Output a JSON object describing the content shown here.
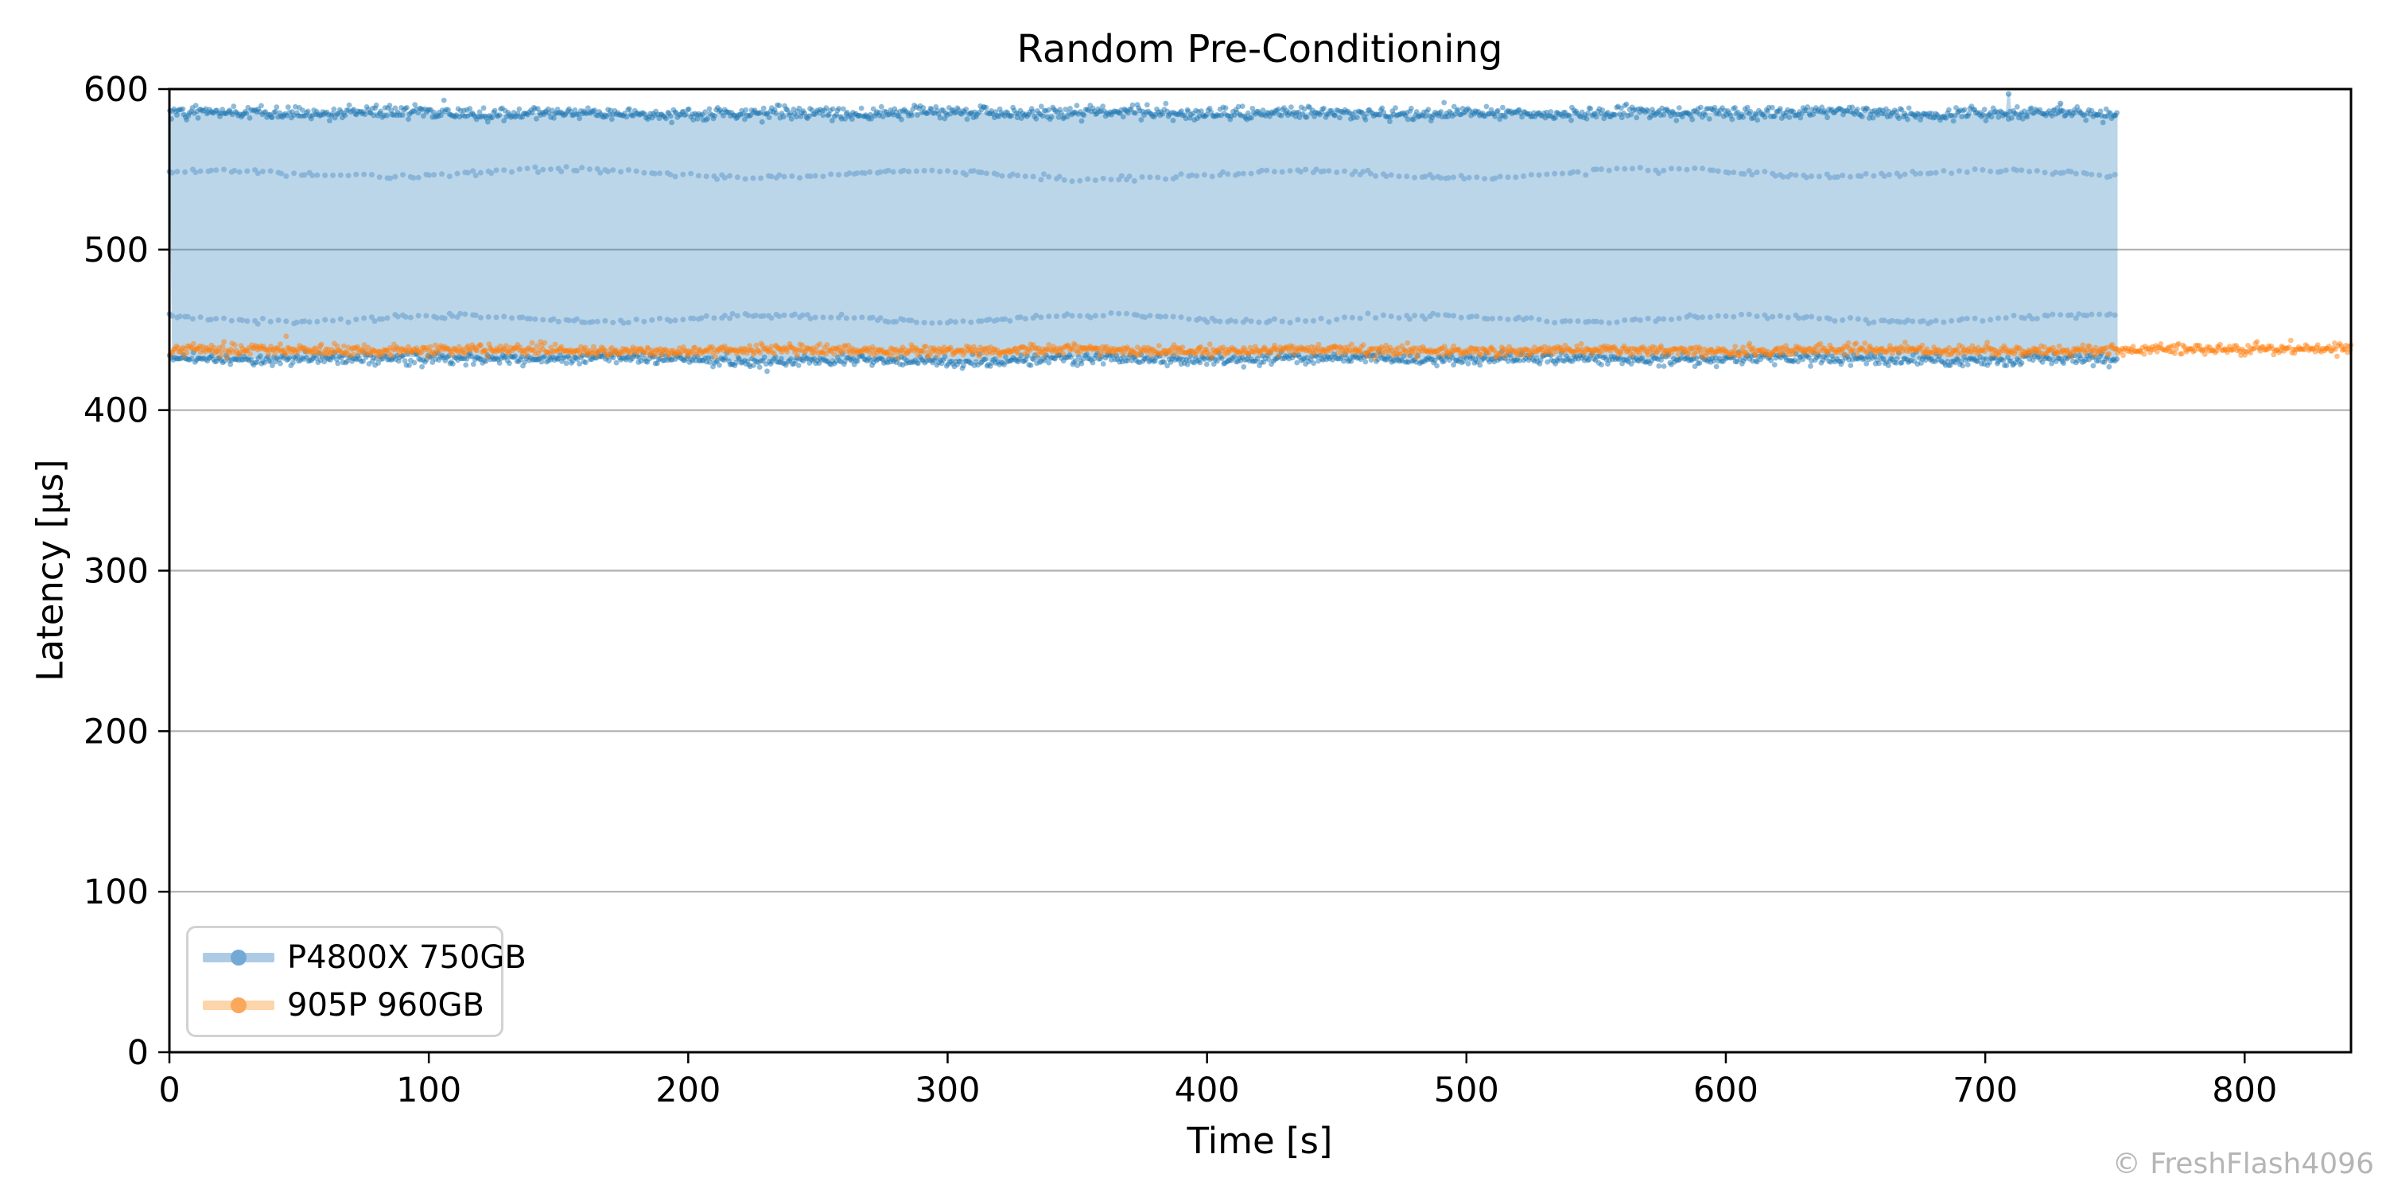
{
  "figure": {
    "title": "Random Pre-Conditioning",
    "watermark": "© FreshFlash4096"
  },
  "chart_data": {
    "type": "scatter",
    "title": "Random Pre-Conditioning",
    "xlabel": "Time [s]",
    "ylabel": "Latency [µs]",
    "xlim": [
      0,
      841
    ],
    "ylim": [
      0,
      600
    ],
    "xticks": [
      0,
      100,
      200,
      300,
      400,
      500,
      600,
      700,
      800
    ],
    "yticks": [
      0,
      100,
      200,
      300,
      400,
      500,
      600
    ],
    "grid": "horizontal",
    "grid_color": "#b0b0b0",
    "legend_position": "lower-left",
    "series": [
      {
        "name": "P4800X 750GB",
        "color": "#1f77b4",
        "fill_opacity": 0.3,
        "t_start": 0,
        "t_end": 751,
        "band_max_us": 585,
        "band_max_sigma_us": 1.0,
        "band_min_us": 432.5,
        "band_min_sigma_us": 0.85,
        "upper_dotted_us": 547,
        "lower_dotted_us": 457,
        "dotted_spacing_s": 3.0,
        "dense_spacing_s": 0.55,
        "dips": [
          {
            "t_from": 215,
            "t_to": 330,
            "delta_us": -1.3
          },
          {
            "t_from": 685,
            "t_to": 715,
            "delta_us": -1.6
          }
        ],
        "spikes": [
          {
            "t": 709,
            "us": 597
          },
          {
            "t": 729,
            "us": 591
          }
        ],
        "legend_key_line_color": "#aecbe6",
        "legend_key_dot_color": "#74a9d6"
      },
      {
        "name": "905P 960GB",
        "color": "#ff7f0e",
        "t_start": 0,
        "t_end": 841,
        "band_center_us": 437.3,
        "band_sigma_us": 0.8,
        "dense_spacing_s": 0.5,
        "tail_rise_us": 1.1,
        "tail_rise_from_s": 745,
        "outliers": [
          {
            "t": 45,
            "us": 446
          }
        ],
        "legend_key_line_color": "#fdd5ab",
        "legend_key_dot_color": "#f9a85c"
      }
    ]
  }
}
